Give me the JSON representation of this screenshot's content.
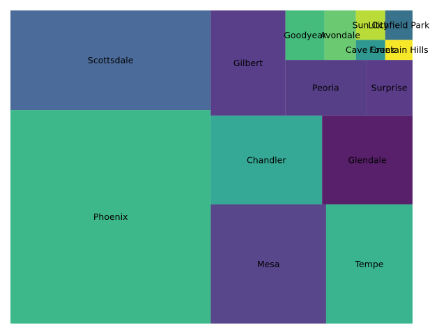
{
  "chart_data": {
    "type": "treemap",
    "title": "",
    "xlabel": "",
    "ylabel": "",
    "xlim": [
      0,
      100
    ],
    "ylim": [
      0,
      100
    ],
    "grid": false,
    "legend": "none",
    "labels": [
      "Phoenix",
      "Scottsdale",
      "Mesa",
      "Tempe",
      "Chandler",
      "Glendale",
      "Gilbert",
      "Peoria",
      "Surprise",
      "Goodyear",
      "Avondale",
      "Sun City",
      "Litchfield Park",
      "Cave Creek",
      "Fountain Hills"
    ],
    "rects": [
      {
        "label": "Phoenix",
        "x": 0,
        "y": 0,
        "dx": 49.8,
        "dy": 68.2,
        "color": "#3db88b"
      },
      {
        "label": "Scottsdale",
        "x": 0,
        "y": 68.2,
        "dx": 49.8,
        "dy": 31.8,
        "color": "#4b6b9a"
      },
      {
        "label": "Mesa",
        "x": 49.8,
        "y": 0,
        "dx": 28.7,
        "dy": 38.1,
        "color": "#58478b"
      },
      {
        "label": "Tempe",
        "x": 78.5,
        "y": 0,
        "dx": 21.5,
        "dy": 38.1,
        "color": "#3ab48f"
      },
      {
        "label": "Chandler",
        "x": 49.8,
        "y": 38.1,
        "dx": 27.7,
        "dy": 28.3,
        "color": "#35a995"
      },
      {
        "label": "Glendale",
        "x": 77.5,
        "y": 38.1,
        "dx": 22.5,
        "dy": 28.3,
        "color": "#58206b"
      },
      {
        "label": "Gilbert",
        "x": 49.8,
        "y": 66.4,
        "dx": 18.6,
        "dy": 33.6,
        "color": "#593f89"
      },
      {
        "label": "Peoria",
        "x": 68.4,
        "y": 66.4,
        "dx": 20,
        "dy": 17.8,
        "color": "#573f88"
      },
      {
        "label": "Surprise",
        "x": 88.4,
        "y": 66.4,
        "dx": 11.6,
        "dy": 17.8,
        "color": "#5a3c88"
      },
      {
        "label": "Goodyear",
        "x": 68.4,
        "y": 84.2,
        "dx": 9.7,
        "dy": 15.8,
        "color": "#45bb7c"
      },
      {
        "label": "Avondale",
        "x": 78.1,
        "y": 84.2,
        "dx": 7.8,
        "dy": 15.8,
        "color": "#6bc972"
      },
      {
        "label": "Sun City",
        "x": 85.9,
        "y": 90.6,
        "dx": 7.3,
        "dy": 9.4,
        "color": "#b9dc39"
      },
      {
        "label": "Litchfield Park",
        "x": 93.2,
        "y": 90.6,
        "dx": 6.8,
        "dy": 9.4,
        "color": "#38728c"
      },
      {
        "label": "Cave Creek",
        "x": 85.9,
        "y": 84.2,
        "dx": 7.3,
        "dy": 6.4,
        "color": "#2f9890"
      },
      {
        "label": "Fountain Hills",
        "x": 93.2,
        "y": 84.2,
        "dx": 6.8,
        "dy": 6.4,
        "color": "#f7e729"
      }
    ]
  }
}
